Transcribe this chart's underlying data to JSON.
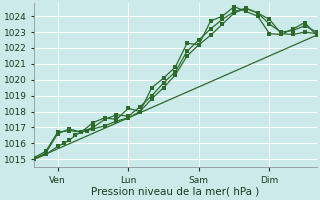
{
  "xlabel": "Pression niveau de la mer( hPa )",
  "bg_color": "#cceaea",
  "grid_color": "#ffffff",
  "line_color": "#2d6a2d",
  "ylim": [
    1014.5,
    1024.8
  ],
  "xlim": [
    0,
    96
  ],
  "yticks": [
    1015,
    1016,
    1017,
    1018,
    1019,
    1020,
    1021,
    1022,
    1023,
    1024
  ],
  "xtick_positions": [
    8,
    32,
    56,
    80
  ],
  "xtick_labels": [
    "Ven",
    "Lun",
    "Sam",
    "Dim"
  ],
  "xgrid_positions": [
    0,
    8,
    16,
    24,
    32,
    40,
    48,
    56,
    64,
    72,
    80,
    88,
    96
  ],
  "vlines": [
    8,
    32,
    56,
    80
  ],
  "trend_x": [
    0,
    96
  ],
  "trend_y": [
    1015.0,
    1022.8
  ],
  "series1_x": [
    0,
    4,
    8,
    10,
    12,
    14,
    16,
    18,
    20,
    24,
    28,
    32,
    36,
    40,
    44,
    48,
    52,
    56,
    60,
    64,
    68,
    72,
    76,
    80,
    84,
    88,
    92,
    96
  ],
  "series1_y": [
    1015.0,
    1015.3,
    1015.8,
    1016.0,
    1016.2,
    1016.5,
    1016.7,
    1016.8,
    1016.9,
    1017.1,
    1017.4,
    1017.6,
    1018.0,
    1018.8,
    1019.5,
    1020.3,
    1021.5,
    1022.2,
    1022.8,
    1023.5,
    1024.2,
    1024.5,
    1024.2,
    1023.5,
    1023.0,
    1023.1,
    1023.4,
    1023.0
  ],
  "series2_x": [
    0,
    4,
    8,
    12,
    16,
    20,
    24,
    28,
    32,
    36,
    40,
    44,
    48,
    52,
    56,
    60,
    64,
    68,
    72,
    76,
    80,
    84,
    88,
    92,
    96
  ],
  "series2_y": [
    1015.1,
    1015.5,
    1016.7,
    1016.8,
    1016.7,
    1017.0,
    1017.5,
    1017.8,
    1017.7,
    1018.3,
    1019.0,
    1019.8,
    1020.5,
    1021.8,
    1022.5,
    1023.2,
    1023.8,
    1024.3,
    1024.5,
    1024.2,
    1023.8,
    1022.9,
    1022.85,
    1023.0,
    1022.9
  ],
  "series3_x": [
    0,
    4,
    8,
    12,
    16,
    20,
    24,
    28,
    32,
    36,
    40,
    44,
    48,
    52,
    56,
    60,
    64,
    68,
    72,
    76,
    80,
    84,
    88,
    92,
    96
  ],
  "series3_y": [
    1015.0,
    1015.4,
    1016.6,
    1016.9,
    1016.7,
    1017.3,
    1017.6,
    1017.5,
    1018.2,
    1018.0,
    1019.5,
    1020.1,
    1020.8,
    1022.3,
    1022.2,
    1023.7,
    1024.0,
    1024.6,
    1024.3,
    1024.0,
    1022.9,
    1022.85,
    1023.2,
    1023.6,
    1022.8
  ]
}
